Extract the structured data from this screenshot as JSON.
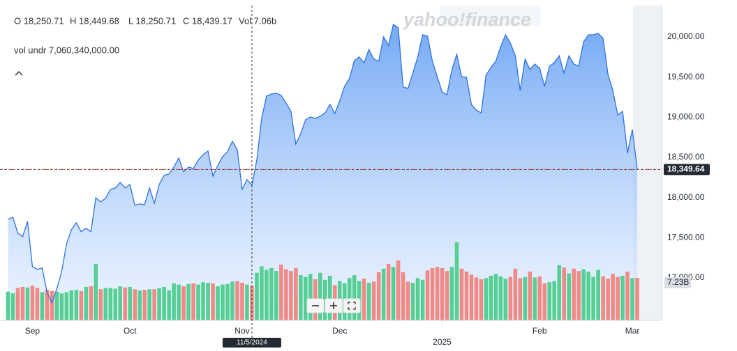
{
  "header": {
    "ohlc": [
      "O 18,250.71",
      "H 18,449.68",
      "L 18,250.71",
      "C 18,439.17",
      "Vol 7.06b"
    ],
    "vol_under": "vol undr  7,060,340,000.00",
    "watermark": "yahoo!finance"
  },
  "chart_data": {
    "type": "area",
    "x": [
      0,
      1,
      2,
      3,
      4,
      5,
      6,
      7,
      8,
      9,
      10,
      11,
      12,
      13,
      14,
      15,
      16,
      17,
      18,
      19,
      20,
      21,
      22,
      23,
      24,
      25,
      26,
      27,
      28,
      29,
      30,
      31,
      32,
      33,
      34,
      35,
      36,
      37,
      38,
      39,
      40,
      41,
      42,
      43,
      44,
      45,
      46,
      47,
      48,
      49,
      50,
      51,
      52,
      53,
      54,
      55,
      56,
      57,
      58,
      59,
      60,
      61,
      62,
      63,
      64,
      65,
      66,
      67,
      68,
      69,
      70,
      71,
      72,
      73,
      74,
      75,
      76,
      77,
      78,
      79,
      80,
      81,
      82,
      83,
      84,
      85,
      86,
      87,
      88,
      89,
      90,
      91,
      92,
      93,
      94,
      95,
      96,
      97,
      98,
      99,
      100,
      101,
      102,
      103,
      104,
      105,
      106,
      107,
      108,
      109,
      110,
      111,
      112,
      113,
      114,
      115,
      116,
      117,
      118,
      119,
      120,
      121,
      122,
      123,
      124,
      125,
      126,
      127,
      128,
      129
    ],
    "xlim": [
      -0.5,
      134
    ],
    "xticks": [
      {
        "value": 5,
        "label": "Sep"
      },
      {
        "value": 25,
        "label": "Oct"
      },
      {
        "value": 48,
        "label": "Nov"
      },
      {
        "value": 68,
        "label": "Dec"
      },
      {
        "value": 109,
        "label": "Feb"
      },
      {
        "value": 128,
        "label": "Mar"
      }
    ],
    "year_ticks": [
      {
        "value": 89,
        "label": "2025"
      }
    ],
    "ylim": [
      16471,
      20390
    ],
    "yticks": [
      {
        "value": 17000,
        "label": "17,000.00"
      },
      {
        "value": 17500,
        "label": "17,500.00"
      },
      {
        "value": 18000,
        "label": "18,000.00"
      },
      {
        "value": 18500,
        "label": "18,500.00"
      },
      {
        "value": 19000,
        "label": "19,000.00"
      },
      {
        "value": 19500,
        "label": "19,500.00"
      },
      {
        "value": 20000,
        "label": "20,000.00"
      }
    ],
    "vol_ylim": [
      0,
      53.6
    ],
    "grid": false,
    "crosshair": {
      "x": 50,
      "label": "11/5/2024"
    },
    "series": [
      {
        "name": "Price",
        "color": "#2f72e0",
        "last_label": "18,349.64",
        "values": [
          17730,
          17755,
          17556,
          17513,
          17704,
          17140,
          17106,
          17123,
          16820,
          16690,
          16863,
          17080,
          17426,
          17600,
          17686,
          17574,
          17617,
          17574,
          17998,
          17946,
          17990,
          18102,
          18119,
          18189,
          18119,
          18163,
          17903,
          17920,
          17911,
          18119,
          17929,
          18163,
          18275,
          18293,
          18379,
          18492,
          18319,
          18379,
          18362,
          18466,
          18535,
          18579,
          18267,
          18397,
          18509,
          18570,
          18700,
          18596,
          18102,
          18223,
          18154,
          18466,
          18986,
          19263,
          19289,
          19298,
          19272,
          19177,
          19073,
          18665,
          18795,
          18969,
          19003,
          18986,
          19012,
          19055,
          19159,
          19047,
          19203,
          19385,
          19480,
          19705,
          19749,
          19679,
          19844,
          19723,
          19697,
          20000,
          19896,
          20156,
          20113,
          19376,
          19359,
          19549,
          19749,
          20026,
          20009,
          19697,
          19506,
          19315,
          19281,
          19593,
          19783,
          19506,
          19497,
          19159,
          19090,
          19055,
          19523,
          19619,
          19697,
          19879,
          20026,
          19922,
          19766,
          19333,
          19723,
          19593,
          19662,
          19610,
          19385,
          19636,
          19679,
          19766,
          19549,
          19766,
          19662,
          19636,
          19939,
          20026,
          20026,
          20043,
          19983,
          19532,
          19333,
          19029,
          19073,
          18553,
          18847,
          18349.64
        ]
      },
      {
        "name": "Volume",
        "up_color": "#56cf94",
        "down_color": "#f08a86",
        "last_label": "7.23B",
        "values": [
          4.9,
          4.6,
          5.5,
          5.7,
          5.6,
          5.9,
          5.5,
          4.8,
          5.2,
          5.0,
          4.9,
          4.6,
          4.8,
          5.1,
          5.2,
          5.0,
          5.7,
          5.8,
          9.6,
          5.3,
          5.5,
          5.5,
          5.4,
          5.8,
          5.6,
          5.7,
          5.3,
          5.1,
          5.2,
          5.3,
          5.3,
          5.5,
          5.7,
          5.1,
          6.3,
          6.1,
          5.8,
          6.2,
          6.3,
          6.1,
          6.5,
          6.4,
          6.3,
          5.8,
          6.1,
          6.2,
          6.6,
          6.7,
          6.4,
          6.1,
          5.9,
          8.1,
          9.2,
          8.6,
          8.9,
          8.4,
          9.5,
          8.7,
          8.4,
          8.9,
          7.7,
          7.4,
          7.9,
          7.0,
          8.1,
          6.9,
          7.6,
          6.0,
          6.7,
          6.3,
          7.2,
          7.7,
          6.7,
          7.1,
          6.4,
          6.6,
          8.2,
          8.8,
          9.6,
          9.1,
          10.2,
          8.2,
          6.6,
          6.4,
          7.2,
          6.9,
          8.5,
          8.9,
          9.1,
          8.9,
          8.4,
          9.1,
          13.3,
          8.8,
          8.3,
          7.8,
          7.3,
          7.0,
          7.2,
          7.6,
          7.9,
          7.5,
          7.1,
          7.4,
          8.8,
          7.2,
          7.4,
          8.3,
          7.3,
          7.5,
          6.3,
          6.5,
          6.7,
          9.4,
          9.0,
          8.0,
          8.8,
          8.4,
          8.7,
          8.3,
          7.4,
          8.6,
          7.5,
          7.1,
          7.9,
          7.4,
          7.6,
          8.3,
          7.2,
          7.23
        ]
      }
    ]
  }
}
